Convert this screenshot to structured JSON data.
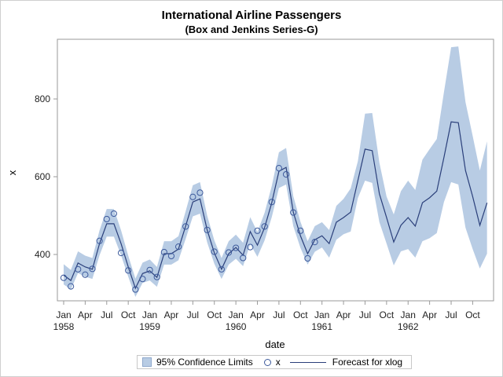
{
  "chart_data": {
    "type": "line",
    "title": "International Airline Passengers",
    "subtitle": "(Box and Jenkins Series-G)",
    "xlabel": "date",
    "ylabel": "x",
    "ylim": [
      290,
      945
    ],
    "yticks": [
      400,
      600,
      800
    ],
    "xrange": [
      "1958-01",
      "1962-12"
    ],
    "xticks": [
      {
        "label": "Jan",
        "year": "1958"
      },
      {
        "label": "Apr",
        "year": ""
      },
      {
        "label": "Jul",
        "year": ""
      },
      {
        "label": "Oct",
        "year": ""
      },
      {
        "label": "Jan",
        "year": "1959"
      },
      {
        "label": "Apr",
        "year": ""
      },
      {
        "label": "Jul",
        "year": ""
      },
      {
        "label": "Oct",
        "year": ""
      },
      {
        "label": "Jan",
        "year": "1960"
      },
      {
        "label": "Apr",
        "year": ""
      },
      {
        "label": "Jul",
        "year": ""
      },
      {
        "label": "Oct",
        "year": ""
      },
      {
        "label": "Jan",
        "year": "1961"
      },
      {
        "label": "Apr",
        "year": ""
      },
      {
        "label": "Jul",
        "year": ""
      },
      {
        "label": "Oct",
        "year": ""
      },
      {
        "label": "Jan",
        "year": "1962"
      },
      {
        "label": "Apr",
        "year": ""
      },
      {
        "label": "Jul",
        "year": ""
      },
      {
        "label": "Oct",
        "year": ""
      }
    ],
    "legend": {
      "position": "bottom",
      "entries": [
        "95% Confidence Limits",
        "x",
        "Forecast for xlog"
      ]
    },
    "series": [
      {
        "name": "x",
        "kind": "scatter",
        "start": "1958-01",
        "values": [
          340,
          318,
          362,
          348,
          363,
          435,
          491,
          505,
          404,
          359,
          310,
          337,
          360,
          342,
          406,
          396,
          420,
          472,
          548,
          559,
          463,
          407,
          362,
          405,
          417,
          391,
          419,
          461,
          472,
          535,
          622,
          606,
          508,
          461,
          390,
          432
        ]
      },
      {
        "name": "Forecast for xlog",
        "kind": "line",
        "start": "1958-01",
        "values": [
          347,
          333,
          378,
          368,
          362,
          428,
          479,
          479,
          428,
          368,
          313,
          351,
          358,
          341,
          402,
          402,
          414,
          473,
          535,
          543,
          463,
          404,
          362,
          402,
          418,
          398,
          459,
          424,
          469,
          533,
          614,
          624,
          509,
          448,
          402,
          438,
          448,
          428,
          483,
          495,
          509,
          590,
          671,
          667,
          556,
          495,
          432,
          475,
          495,
          473,
          533,
          546,
          563,
          650,
          741,
          739,
          616,
          549,
          475,
          533
        ]
      },
      {
        "name": "95% Confidence Limits",
        "kind": "band",
        "start": "1958-01",
        "upper": [
          375,
          360,
          408,
          397,
          391,
          462,
          517,
          517,
          462,
          397,
          338,
          379,
          387,
          368,
          434,
          434,
          447,
          511,
          578,
          586,
          500,
          436,
          391,
          434,
          451,
          430,
          496,
          458,
          507,
          576,
          663,
          674,
          550,
          484,
          434,
          473,
          483,
          463,
          525,
          543,
          570,
          640,
          762,
          764,
          636,
          549,
          503,
          563,
          590,
          566,
          644,
          671,
          697,
          818,
          933,
          935,
          792,
          705,
          616,
          691
        ],
        "lower": [
          323,
          310,
          352,
          343,
          337,
          398,
          446,
          446,
          398,
          343,
          291,
          327,
          333,
          317,
          374,
          374,
          385,
          440,
          498,
          505,
          431,
          376,
          337,
          374,
          389,
          370,
          427,
          394,
          436,
          496,
          571,
          580,
          473,
          417,
          374,
          407,
          418,
          392,
          438,
          452,
          459,
          545,
          590,
          584,
          483,
          428,
          372,
          408,
          414,
          392,
          434,
          442,
          455,
          535,
          586,
          580,
          469,
          414,
          364,
          402
        ]
      }
    ],
    "colors": {
      "band": "#b8cce4",
      "line": "#2a3f7a",
      "marker": "#3d5a9c",
      "axis": "#9a9a9a"
    }
  }
}
